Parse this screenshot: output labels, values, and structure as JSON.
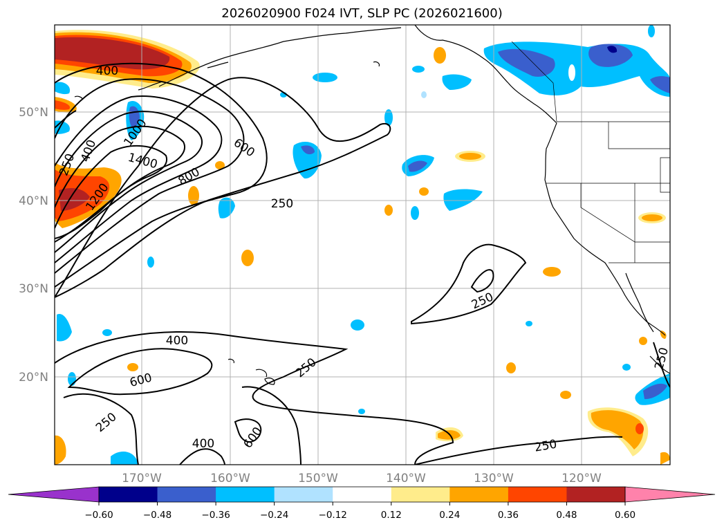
{
  "title": "2026020900 F024 IVT, SLP PC (2026021600)",
  "lat_labels": [
    "50°N",
    "40°N",
    "30°N",
    "20°N"
  ],
  "lon_labels": [
    "170°W",
    "160°W",
    "150°W",
    "140°W",
    "130°W",
    "120°W"
  ],
  "colorbar": {
    "ticks": [
      "−0.60",
      "−0.48",
      "−0.36",
      "−0.24",
      "−0.12",
      "0.12",
      "0.24",
      "0.36",
      "0.48",
      "0.60"
    ],
    "colors": [
      "#9932cc",
      "#00008b",
      "#3a5fcd",
      "#00bfff",
      "#b0e2ff",
      "#ffffff",
      "#ffec8b",
      "#ffa500",
      "#ff4500",
      "#b22222",
      "#ff82ab"
    ]
  },
  "contour_labels": [
    "400",
    "250",
    "400",
    "1000",
    "1400",
    "1200",
    "600",
    "800",
    "250",
    "250",
    "400",
    "250",
    "600",
    "250",
    "400",
    "600",
    "250",
    "250"
  ]
}
